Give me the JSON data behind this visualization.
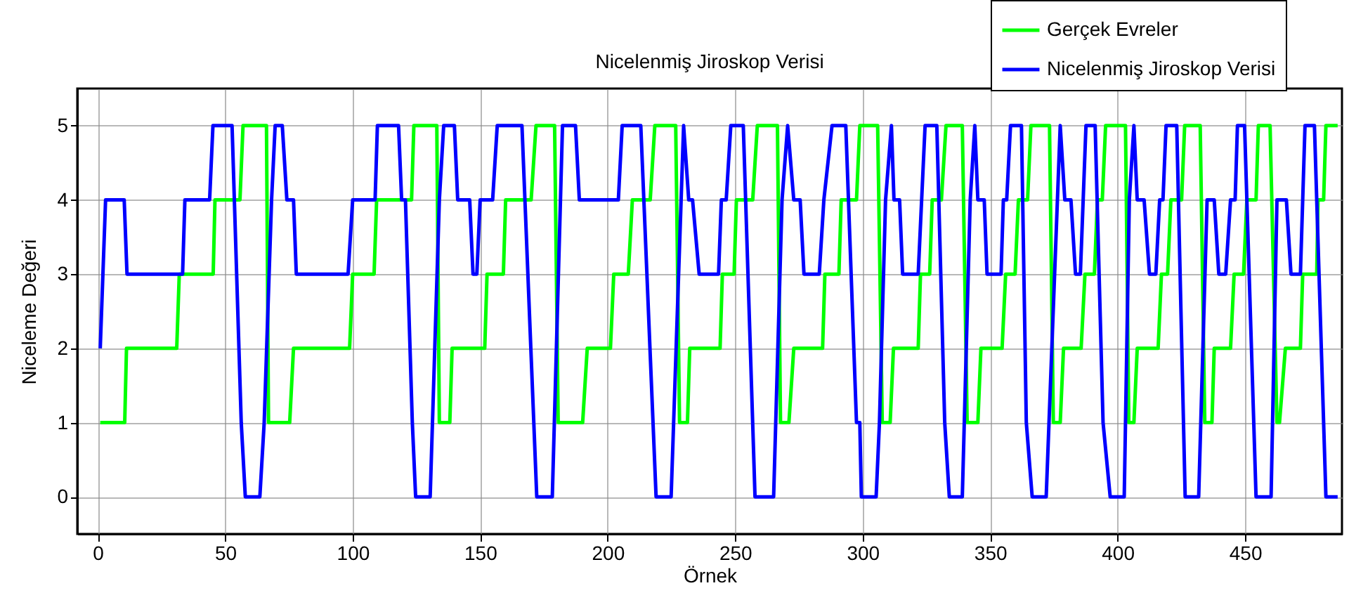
{
  "chart_data": {
    "type": "line",
    "title": "Nicelenmiş Jiroskop Verisi",
    "xlabel": "Örnek",
    "ylabel": "Niceleme Değeri",
    "xlim": [
      -8,
      488
    ],
    "ylim": [
      -0.5,
      5.5
    ],
    "xticks": [
      0,
      50,
      100,
      150,
      200,
      250,
      300,
      350,
      400,
      450
    ],
    "yticks": [
      0,
      1,
      2,
      3,
      4,
      5
    ],
    "grid": true,
    "legend": "top right",
    "series": [
      {
        "name": "Gerçek Evreler",
        "color": "#00ff00",
        "x": [
          1,
          10.6,
          11.3,
          31,
          32,
          45.3,
          46,
          55.8,
          57,
          66.2,
          67,
          75.3,
          76.8,
          98.8,
          100,
          108.4,
          109.4,
          123.1,
          124,
          133,
          134,
          138.1,
          139,
          151.8,
          152.7,
          159.1,
          160,
          170,
          171.9,
          179.2,
          180.6,
          190.2,
          192,
          201.1,
          202.4,
          208.1,
          209.7,
          216.7,
          218.5,
          226.7,
          228.2,
          231.3,
          232.2,
          244.1,
          245,
          249.6,
          250.5,
          256.9,
          258.7,
          266.6,
          267.8,
          271.1,
          273,
          284.3,
          285.2,
          290.7,
          291.6,
          297.6,
          298.9,
          305.9,
          307.7,
          310.8,
          312.1,
          321.8,
          322.7,
          326.3,
          327.3,
          330.9,
          332.7,
          339.1,
          341,
          345.2,
          346.4,
          354.7,
          356.1,
          359.8,
          361.1,
          364.7,
          366,
          373.3,
          374.8,
          377.5,
          378.8,
          385.7,
          387.2,
          390.9,
          392.1,
          394,
          395.3,
          403.1,
          404.4,
          406.4,
          407.7,
          415.9,
          417.2,
          419.6,
          420.9,
          425.1,
          426.3,
          432.4,
          434.2,
          437,
          437.9,
          444.3,
          445.7,
          449.4,
          450.7,
          454.3,
          455.2,
          459.8,
          462.5,
          463.5,
          465.8,
          471.7,
          472.6,
          478.1,
          478.6,
          480.8,
          481.7,
          486.3
        ],
        "values": [
          1,
          1,
          2,
          2,
          3,
          3,
          4,
          4,
          5,
          5,
          1,
          1,
          2,
          2,
          3,
          3,
          4,
          4,
          5,
          5,
          1,
          1,
          2,
          2,
          3,
          3,
          4,
          4,
          5,
          5,
          1,
          1,
          2,
          2,
          3,
          3,
          4,
          4,
          5,
          5,
          1,
          1,
          2,
          2,
          3,
          3,
          4,
          4,
          5,
          5,
          1,
          1,
          2,
          2,
          3,
          3,
          4,
          4,
          5,
          5,
          1,
          1,
          2,
          2,
          3,
          3,
          4,
          4,
          5,
          5,
          1,
          1,
          2,
          2,
          3,
          3,
          4,
          4,
          5,
          5,
          1,
          1,
          2,
          2,
          3,
          3,
          4,
          4,
          5,
          5,
          1,
          1,
          2,
          2,
          3,
          3,
          4,
          4,
          5,
          5,
          1,
          1,
          2,
          2,
          3,
          3,
          4,
          4,
          5,
          5,
          1,
          1,
          2,
          2,
          3,
          3,
          4,
          4,
          5,
          5
        ]
      },
      {
        "name": "Nicelenmiş Jiroskop Verisi",
        "color": "#0000ff",
        "x": [
          1,
          3.1,
          10.4,
          11.5,
          33.3,
          34.2,
          43.9,
          45.2,
          52.7,
          56.3,
          57.9,
          63.6,
          65.3,
          68.2,
          69.6,
          72.4,
          74.2,
          76.8,
          77.9,
          98.2,
          100,
          108.8,
          109.7,
          118,
          119.2,
          120.7,
          123.4,
          124.7,
          130.4,
          134,
          135.7,
          139.9,
          141.2,
          145.9,
          147.2,
          148.7,
          150,
          154.9,
          156.7,
          166.4,
          172.2,
          178.3,
          182.3,
          187.4,
          188.9,
          204.2,
          205.7,
          213,
          219,
          224.9,
          229.8,
          231.8,
          233.3,
          235.9,
          243.5,
          244.6,
          246.5,
          248.3,
          253.2,
          257.8,
          265.1,
          268.4,
          270.6,
          273,
          275.5,
          277,
          283,
          284.8,
          288,
          293.4,
          297.6,
          298.9,
          299.5,
          305.3,
          306.6,
          309,
          311.3,
          312.3,
          314.5,
          315.7,
          321.8,
          324.5,
          329.1,
          332.2,
          334,
          339.1,
          342.2,
          344,
          345.2,
          347.7,
          348.8,
          354.3,
          355.2,
          356.5,
          358,
          362.3,
          364.2,
          366.5,
          372,
          377.5,
          379.3,
          381.7,
          383.5,
          385.4,
          387.6,
          391.2,
          394.3,
          397.1,
          402.6,
          404.6,
          406.4,
          407.7,
          410.4,
          412.5,
          415,
          416.5,
          417.8,
          419,
          423.2,
          426.5,
          431.8,
          435.1,
          437.9,
          439.7,
          442.4,
          444.3,
          446.1,
          447,
          449.8,
          454.3,
          460.2,
          462.5,
          466.2,
          468,
          471.7,
          473.5,
          477.2,
          481.7,
          486.3
        ],
        "values": [
          2,
          4,
          4,
          3,
          3,
          4,
          4,
          5,
          5,
          1,
          0,
          0,
          1,
          4,
          5,
          5,
          4,
          4,
          3,
          3,
          4,
          4,
          5,
          5,
          4,
          4,
          1,
          0,
          0,
          4,
          5,
          5,
          4,
          4,
          3,
          3,
          4,
          4,
          5,
          5,
          0,
          0,
          5,
          5,
          4,
          4,
          5,
          5,
          0,
          0,
          5,
          4,
          4,
          3,
          3,
          4,
          4,
          5,
          5,
          0,
          0,
          4,
          5,
          4,
          4,
          3,
          3,
          4,
          5,
          5,
          1,
          1,
          0,
          0,
          1,
          4,
          5,
          4,
          4,
          3,
          3,
          5,
          5,
          1,
          0,
          0,
          4,
          5,
          4,
          4,
          3,
          3,
          4,
          4,
          5,
          5,
          1,
          0,
          0,
          5,
          4,
          4,
          3,
          3,
          5,
          5,
          1,
          0,
          0,
          4,
          5,
          4,
          4,
          3,
          3,
          4,
          4,
          5,
          5,
          0,
          0,
          4,
          4,
          3,
          3,
          4,
          4,
          5,
          5,
          0,
          0,
          4,
          4,
          3,
          3,
          5,
          5,
          0,
          0
        ]
      }
    ]
  }
}
